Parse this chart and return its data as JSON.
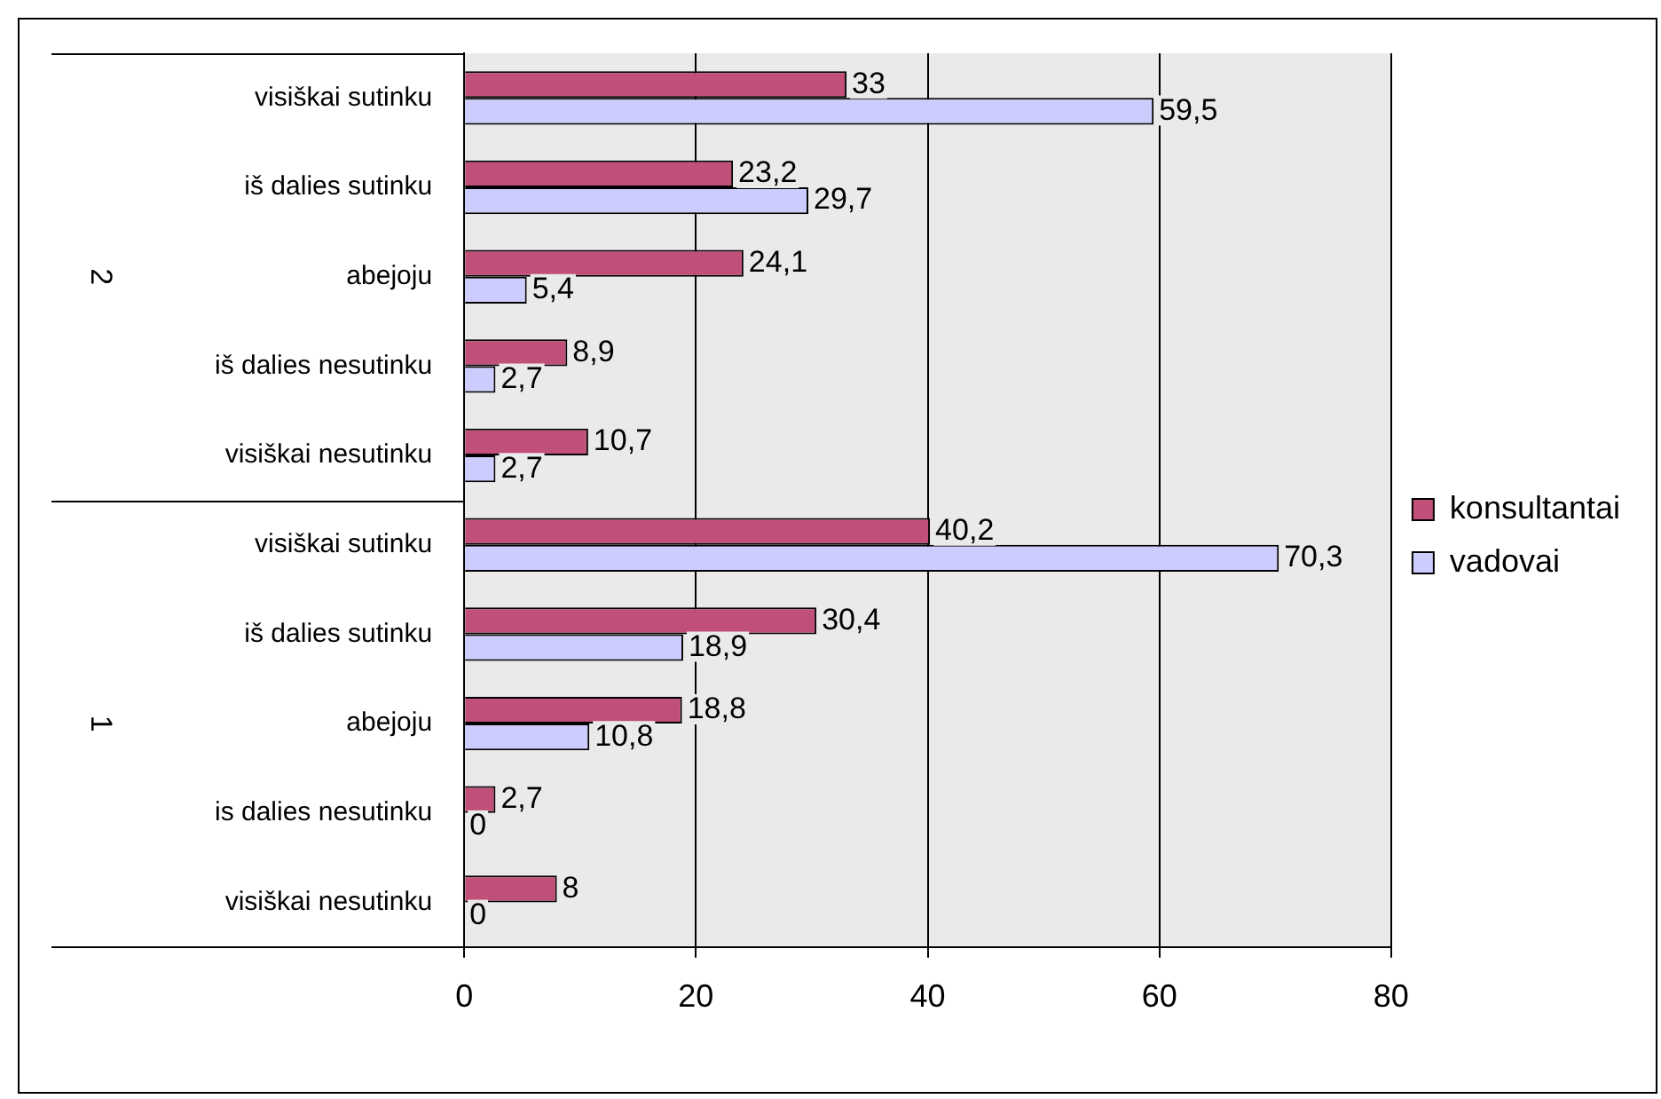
{
  "chart_data": {
    "type": "bar",
    "orientation": "horizontal",
    "categories": [
      "visiškai sutinku",
      "iš dalies sutinku",
      "abejoju",
      "iš dalies nesutinku",
      "visiškai nesutinku",
      "visiškai sutinku",
      "iš dalies sutinku",
      "abejoju",
      "is dalies nesutinku",
      "visiškai nesutinku"
    ],
    "series": [
      {
        "name": "konsultantai",
        "color": "#c0507a",
        "values": [
          33,
          23.2,
          24.1,
          8.9,
          10.7,
          40.2,
          30.4,
          18.8,
          2.7,
          8
        ],
        "value_labels": [
          "33",
          "23,2",
          "24,1",
          "8,9",
          "10,7",
          "40,2",
          "30,4",
          "18,8",
          "2,7",
          "8"
        ]
      },
      {
        "name": "vadovai",
        "color": "#ccccff",
        "values": [
          59.5,
          29.7,
          5.4,
          2.7,
          2.7,
          70.3,
          18.9,
          10.8,
          0,
          0
        ],
        "value_labels": [
          "59,5",
          "29,7",
          "5,4",
          "2,7",
          "2,7",
          "70,3",
          "18,9",
          "10,8",
          "0",
          "0"
        ]
      }
    ],
    "annotations": [
      "2",
      "1"
    ],
    "xlim": [
      0,
      80
    ],
    "xticks": [
      0,
      20,
      40,
      60,
      80
    ],
    "grid": "x",
    "legend": "right"
  }
}
